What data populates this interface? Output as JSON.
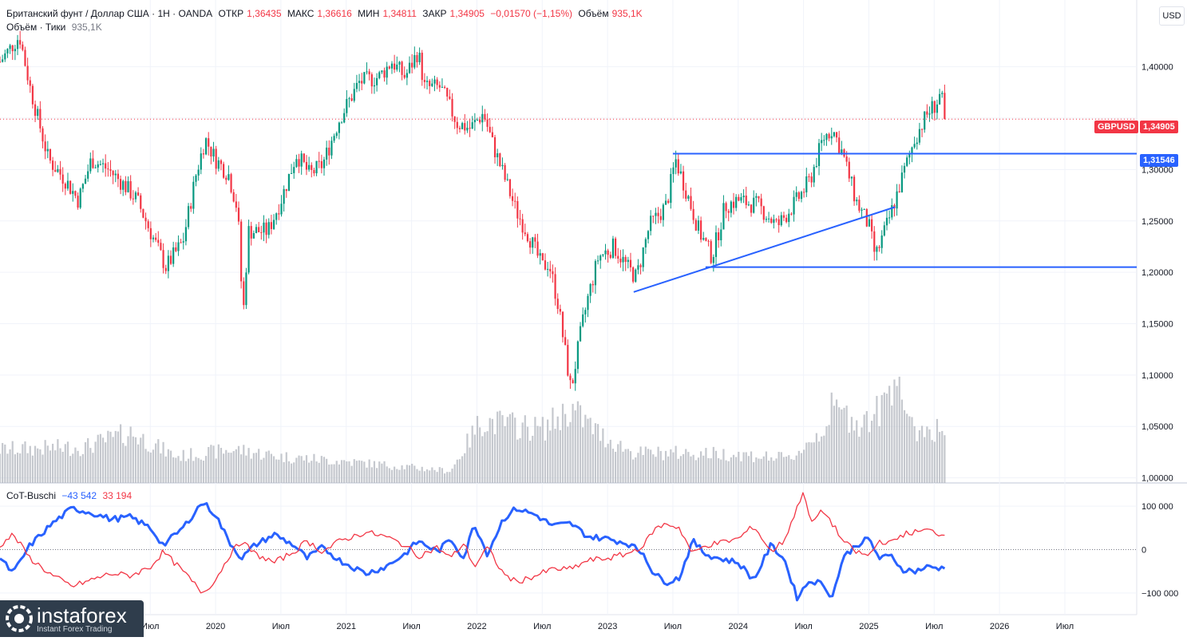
{
  "header": {
    "title": "Британский фунт / Доллар США · 1Н · OANDA",
    "open_label": "ОТКР",
    "open_value": "1,36435",
    "high_label": "МАКС",
    "high_value": "1,36616",
    "low_label": "МИН",
    "low_value": "1,34811",
    "close_label": "ЗАКР",
    "close_value": "1,34905",
    "change_value": "−0,01570 (−1,15%)",
    "volume_label": "Объём",
    "volume_value": "935,1K",
    "volume_row_label": "Объём · Тики",
    "volume_row_value": "935,1K"
  },
  "currency_button": "USD",
  "price_badges": {
    "symbol": "GBPUSD",
    "last_price": "1,34905",
    "level_price": "1,31546"
  },
  "indicator_legend": {
    "name": "CoT-Buschi",
    "value_1": "−43 542",
    "value_2": "33 194"
  },
  "logo": {
    "name": "instaforex",
    "tagline": "Instant Forex Trading"
  },
  "colors": {
    "up": "#089981",
    "down": "#f23645",
    "line_blue": "#2962ff",
    "cot_red": "#f23645",
    "volume": "#b2b5be"
  },
  "chart_data": [
    {
      "type": "candlestick",
      "symbol": "GBPUSD",
      "timeframe": "1Н",
      "y_axis": {
        "ticks": [
          1.0,
          1.05,
          1.1,
          1.15,
          1.2,
          1.25,
          1.3,
          1.35,
          1.4
        ],
        "tick_labels": [
          "1,00000",
          "1,05000",
          "1,10000",
          "1,15000",
          "1,20000",
          "1,25000",
          "1,30000",
          "",
          "1,40000"
        ],
        "range": [
          0.995,
          1.465
        ]
      },
      "x_axis": {
        "ticks": [
          2019.5,
          2020.0,
          2020.5,
          2021.0,
          2021.5,
          2022.0,
          2022.5,
          2023.0,
          2023.5,
          2024.0,
          2024.5,
          2025.0,
          2025.5,
          2026.0,
          2026.5
        ],
        "tick_labels": [
          "Июл",
          "2020",
          "Июл",
          "2021",
          "Июл",
          "2022",
          "Июл",
          "2023",
          "Июл",
          "2024",
          "Июл",
          "2025",
          "Июл",
          "2026",
          "Июл"
        ],
        "range": [
          2018.35,
          2027.05
        ]
      },
      "last_price": 1.34905,
      "horizontal_levels": [
        1.31546,
        1.205
      ],
      "level_segments": [
        {
          "x": [
            2023.5,
            2027.05
          ],
          "y": [
            1.31546,
            1.31546
          ]
        },
        {
          "x": [
            2023.75,
            2027.05
          ],
          "y": [
            1.205,
            1.205
          ]
        }
      ],
      "trendlines": [
        {
          "x": [
            2023.2,
            2025.2
          ],
          "y": [
            1.1808,
            1.2635
          ]
        }
      ],
      "price_path": [
        [
          2018.35,
          1.405
        ],
        [
          2018.5,
          1.43
        ],
        [
          2018.58,
          1.38
        ],
        [
          2018.72,
          1.31
        ],
        [
          2018.85,
          1.29
        ],
        [
          2018.95,
          1.27
        ],
        [
          2019.05,
          1.31
        ],
        [
          2019.18,
          1.3
        ],
        [
          2019.3,
          1.285
        ],
        [
          2019.4,
          1.27
        ],
        [
          2019.55,
          1.225
        ],
        [
          2019.62,
          1.205
        ],
        [
          2019.75,
          1.23
        ],
        [
          2019.85,
          1.295
        ],
        [
          2019.92,
          1.33
        ],
        [
          2020.0,
          1.31
        ],
        [
          2020.1,
          1.295
        ],
        [
          2020.17,
          1.26
        ],
        [
          2020.21,
          1.155
        ],
        [
          2020.25,
          1.24
        ],
        [
          2020.4,
          1.24
        ],
        [
          2020.5,
          1.27
        ],
        [
          2020.62,
          1.315
        ],
        [
          2020.72,
          1.295
        ],
        [
          2020.82,
          1.305
        ],
        [
          2020.95,
          1.35
        ],
        [
          2021.1,
          1.385
        ],
        [
          2021.25,
          1.39
        ],
        [
          2021.35,
          1.405
        ],
        [
          2021.45,
          1.39
        ],
        [
          2021.55,
          1.415
        ],
        [
          2021.6,
          1.38
        ],
        [
          2021.72,
          1.38
        ],
        [
          2021.85,
          1.345
        ],
        [
          2021.95,
          1.34
        ],
        [
          2022.05,
          1.355
        ],
        [
          2022.12,
          1.325
        ],
        [
          2022.3,
          1.26
        ],
        [
          2022.4,
          1.235
        ],
        [
          2022.5,
          1.205
        ],
        [
          2022.55,
          1.21
        ],
        [
          2022.62,
          1.17
        ],
        [
          2022.72,
          1.085
        ],
        [
          2022.8,
          1.145
        ],
        [
          2022.85,
          1.175
        ],
        [
          2022.93,
          1.215
        ],
        [
          2023.05,
          1.225
        ],
        [
          2023.15,
          1.205
        ],
        [
          2023.22,
          1.195
        ],
        [
          2023.32,
          1.245
        ],
        [
          2023.45,
          1.265
        ],
        [
          2023.52,
          1.31
        ],
        [
          2023.6,
          1.28
        ],
        [
          2023.7,
          1.24
        ],
        [
          2023.8,
          1.215
        ],
        [
          2023.9,
          1.265
        ],
        [
          2024.0,
          1.27
        ],
        [
          2024.15,
          1.265
        ],
        [
          2024.3,
          1.245
        ],
        [
          2024.45,
          1.27
        ],
        [
          2024.55,
          1.29
        ],
        [
          2024.65,
          1.33
        ],
        [
          2024.72,
          1.34
        ],
        [
          2024.8,
          1.315
        ],
        [
          2024.9,
          1.27
        ],
        [
          2025.0,
          1.245
        ],
        [
          2025.05,
          1.215
        ],
        [
          2025.15,
          1.25
        ],
        [
          2025.25,
          1.29
        ],
        [
          2025.35,
          1.33
        ],
        [
          2025.45,
          1.355
        ],
        [
          2025.52,
          1.365
        ],
        [
          2025.55,
          1.375
        ],
        [
          2025.58,
          1.349
        ]
      ],
      "volume_path": [
        [
          2018.35,
          0.28
        ],
        [
          2019.0,
          0.3
        ],
        [
          2019.35,
          0.42
        ],
        [
          2019.7,
          0.22
        ],
        [
          2020.15,
          0.28
        ],
        [
          2020.5,
          0.22
        ],
        [
          2021.0,
          0.18
        ],
        [
          2021.8,
          0.1
        ],
        [
          2022.03,
          0.52
        ],
        [
          2022.5,
          0.45
        ],
        [
          2022.72,
          0.62
        ],
        [
          2022.95,
          0.4
        ],
        [
          2023.2,
          0.25
        ],
        [
          2023.6,
          0.25
        ],
        [
          2024.0,
          0.24
        ],
        [
          2024.4,
          0.2
        ],
        [
          2024.65,
          0.45
        ],
        [
          2024.72,
          0.62
        ],
        [
          2024.95,
          0.5
        ],
        [
          2025.1,
          0.62
        ],
        [
          2025.22,
          1.0
        ],
        [
          2025.3,
          0.45
        ],
        [
          2025.58,
          0.45
        ]
      ]
    },
    {
      "type": "line",
      "title": "CoT-Buschi",
      "y_axis": {
        "ticks": [
          100000,
          0,
          -100000
        ],
        "tick_labels": [
          "100 000",
          "0",
          "−100 000"
        ],
        "range": [
          -150000,
          150000
        ]
      },
      "series": [
        {
          "name": "",
          "color": "#2962ff",
          "points": [
            [
              2018.35,
              -20000
            ],
            [
              2018.45,
              -55000
            ],
            [
              2018.58,
              10000
            ],
            [
              2018.75,
              60000
            ],
            [
              2018.9,
              95000
            ],
            [
              2019.05,
              85000
            ],
            [
              2019.2,
              70000
            ],
            [
              2019.35,
              75000
            ],
            [
              2019.5,
              50000
            ],
            [
              2019.6,
              10000
            ],
            [
              2019.75,
              50000
            ],
            [
              2019.9,
              110000
            ],
            [
              2020.0,
              80000
            ],
            [
              2020.1,
              20000
            ],
            [
              2020.2,
              -20000
            ],
            [
              2020.3,
              10000
            ],
            [
              2020.45,
              35000
            ],
            [
              2020.6,
              10000
            ],
            [
              2020.7,
              -20000
            ],
            [
              2020.82,
              5000
            ],
            [
              2020.95,
              -25000
            ],
            [
              2021.05,
              -40000
            ],
            [
              2021.15,
              -55000
            ],
            [
              2021.3,
              -40000
            ],
            [
              2021.45,
              -10000
            ],
            [
              2021.55,
              20000
            ],
            [
              2021.7,
              -5000
            ],
            [
              2021.8,
              25000
            ],
            [
              2021.9,
              -20000
            ],
            [
              2021.98,
              60000
            ],
            [
              2022.08,
              -10000
            ],
            [
              2022.2,
              70000
            ],
            [
              2022.3,
              95000
            ],
            [
              2022.45,
              80000
            ],
            [
              2022.58,
              55000
            ],
            [
              2022.72,
              60000
            ],
            [
              2022.85,
              30000
            ],
            [
              2023.0,
              25000
            ],
            [
              2023.15,
              15000
            ],
            [
              2023.28,
              -10000
            ],
            [
              2023.35,
              -55000
            ],
            [
              2023.45,
              -75000
            ],
            [
              2023.55,
              -65000
            ],
            [
              2023.65,
              20000
            ],
            [
              2023.75,
              -10000
            ],
            [
              2023.85,
              -20000
            ],
            [
              2024.0,
              -30000
            ],
            [
              2024.12,
              -70000
            ],
            [
              2024.25,
              10000
            ],
            [
              2024.35,
              -20000
            ],
            [
              2024.45,
              -110000
            ],
            [
              2024.55,
              -70000
            ],
            [
              2024.65,
              -80000
            ],
            [
              2024.72,
              -110000
            ],
            [
              2024.8,
              -20000
            ],
            [
              2024.9,
              10000
            ],
            [
              2025.0,
              25000
            ],
            [
              2025.08,
              -20000
            ],
            [
              2025.18,
              -15000
            ],
            [
              2025.25,
              -45000
            ],
            [
              2025.35,
              -50000
            ],
            [
              2025.45,
              -40000
            ],
            [
              2025.58,
              -43542
            ]
          ]
        },
        {
          "name": "",
          "color": "#f23645",
          "points": [
            [
              2018.35,
              10000
            ],
            [
              2018.45,
              35000
            ],
            [
              2018.58,
              -20000
            ],
            [
              2018.75,
              -60000
            ],
            [
              2018.9,
              -85000
            ],
            [
              2019.05,
              -70000
            ],
            [
              2019.2,
              -55000
            ],
            [
              2019.35,
              -60000
            ],
            [
              2019.5,
              -40000
            ],
            [
              2019.6,
              -5000
            ],
            [
              2019.75,
              -50000
            ],
            [
              2019.9,
              -100000
            ],
            [
              2020.0,
              -70000
            ],
            [
              2020.1,
              -15000
            ],
            [
              2020.2,
              20000
            ],
            [
              2020.3,
              -10000
            ],
            [
              2020.45,
              -30000
            ],
            [
              2020.6,
              -5000
            ],
            [
              2020.7,
              20000
            ],
            [
              2020.82,
              -5000
            ],
            [
              2020.95,
              20000
            ],
            [
              2021.05,
              30000
            ],
            [
              2021.15,
              40000
            ],
            [
              2021.3,
              30000
            ],
            [
              2021.45,
              10000
            ],
            [
              2021.55,
              -15000
            ],
            [
              2021.7,
              5000
            ],
            [
              2021.8,
              -20000
            ],
            [
              2021.9,
              15000
            ],
            [
              2021.98,
              -40000
            ],
            [
              2022.08,
              5000
            ],
            [
              2022.2,
              -55000
            ],
            [
              2022.3,
              -75000
            ],
            [
              2022.45,
              -60000
            ],
            [
              2022.58,
              -45000
            ],
            [
              2022.72,
              -45000
            ],
            [
              2022.85,
              -25000
            ],
            [
              2023.0,
              -20000
            ],
            [
              2023.15,
              -10000
            ],
            [
              2023.28,
              10000
            ],
            [
              2023.35,
              45000
            ],
            [
              2023.45,
              60000
            ],
            [
              2023.55,
              50000
            ],
            [
              2023.65,
              -10000
            ],
            [
              2023.75,
              10000
            ],
            [
              2023.85,
              15000
            ],
            [
              2024.0,
              25000
            ],
            [
              2024.12,
              55000
            ],
            [
              2024.25,
              -5000
            ],
            [
              2024.35,
              20000
            ],
            [
              2024.45,
              95000
            ],
            [
              2024.5,
              140000
            ],
            [
              2024.55,
              60000
            ],
            [
              2024.65,
              90000
            ],
            [
              2024.72,
              60000
            ],
            [
              2024.8,
              20000
            ],
            [
              2024.9,
              -5000
            ],
            [
              2025.0,
              -15000
            ],
            [
              2025.08,
              20000
            ],
            [
              2025.18,
              15000
            ],
            [
              2025.25,
              35000
            ],
            [
              2025.35,
              40000
            ],
            [
              2025.45,
              45000
            ],
            [
              2025.58,
              33194
            ]
          ]
        }
      ]
    }
  ]
}
